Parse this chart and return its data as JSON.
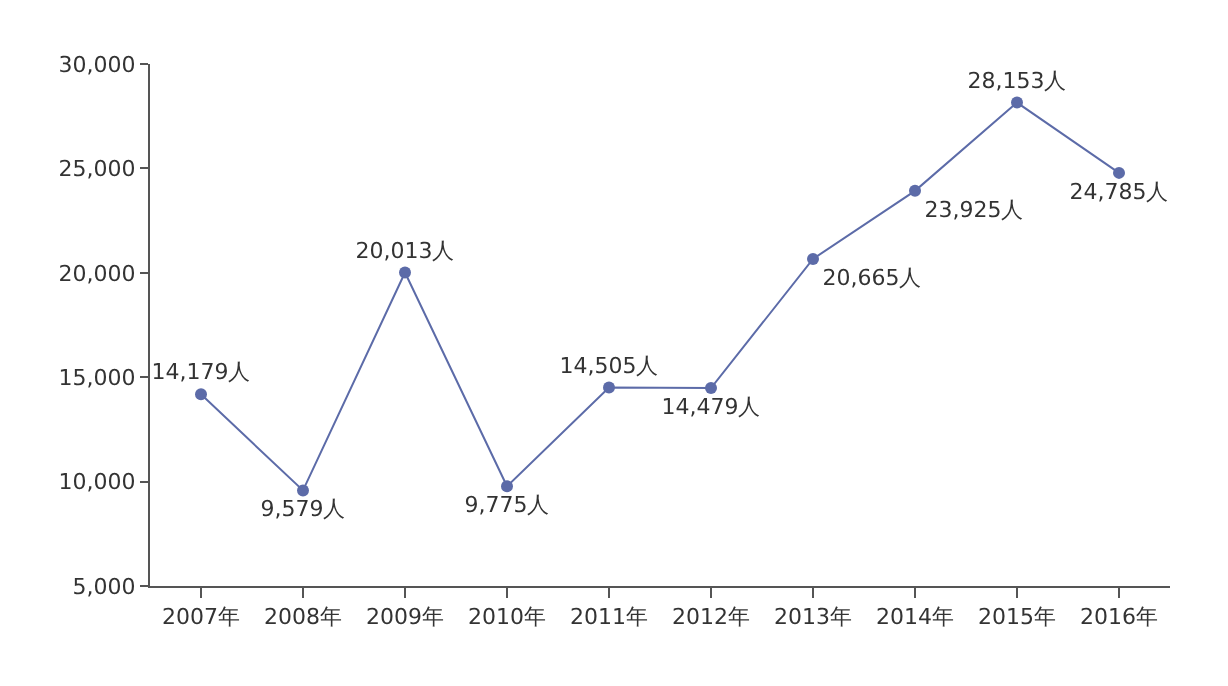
{
  "chart_data": {
    "type": "line",
    "categories": [
      "2007年",
      "2008年",
      "2009年",
      "2010年",
      "2011年",
      "2012年",
      "2013年",
      "2014年",
      "2015年",
      "2016年"
    ],
    "series": [
      {
        "color": "#5c6ba8",
        "values": [
          14179,
          9579,
          20013,
          9775,
          14505,
          14479,
          20665,
          23925,
          28153,
          24785
        ],
        "value_labels": [
          "14,179人",
          "9,579人",
          "20,013人",
          "9,775人",
          "14,505人",
          "14,479人",
          "20,665人",
          "23,925人",
          "28,153人",
          "24,785人"
        ]
      }
    ],
    "ylim": [
      5000,
      30000
    ],
    "yticks": [
      {
        "value": 5000,
        "label": "5,000"
      },
      {
        "value": 10000,
        "label": "10,000"
      },
      {
        "value": 15000,
        "label": "15,000"
      },
      {
        "value": 20000,
        "label": "20,000"
      },
      {
        "value": 25000,
        "label": "25,000"
      },
      {
        "value": 30000,
        "label": "30,000"
      }
    ],
    "grid": false,
    "legend": false,
    "marker": "circle",
    "line_style": "solid"
  }
}
